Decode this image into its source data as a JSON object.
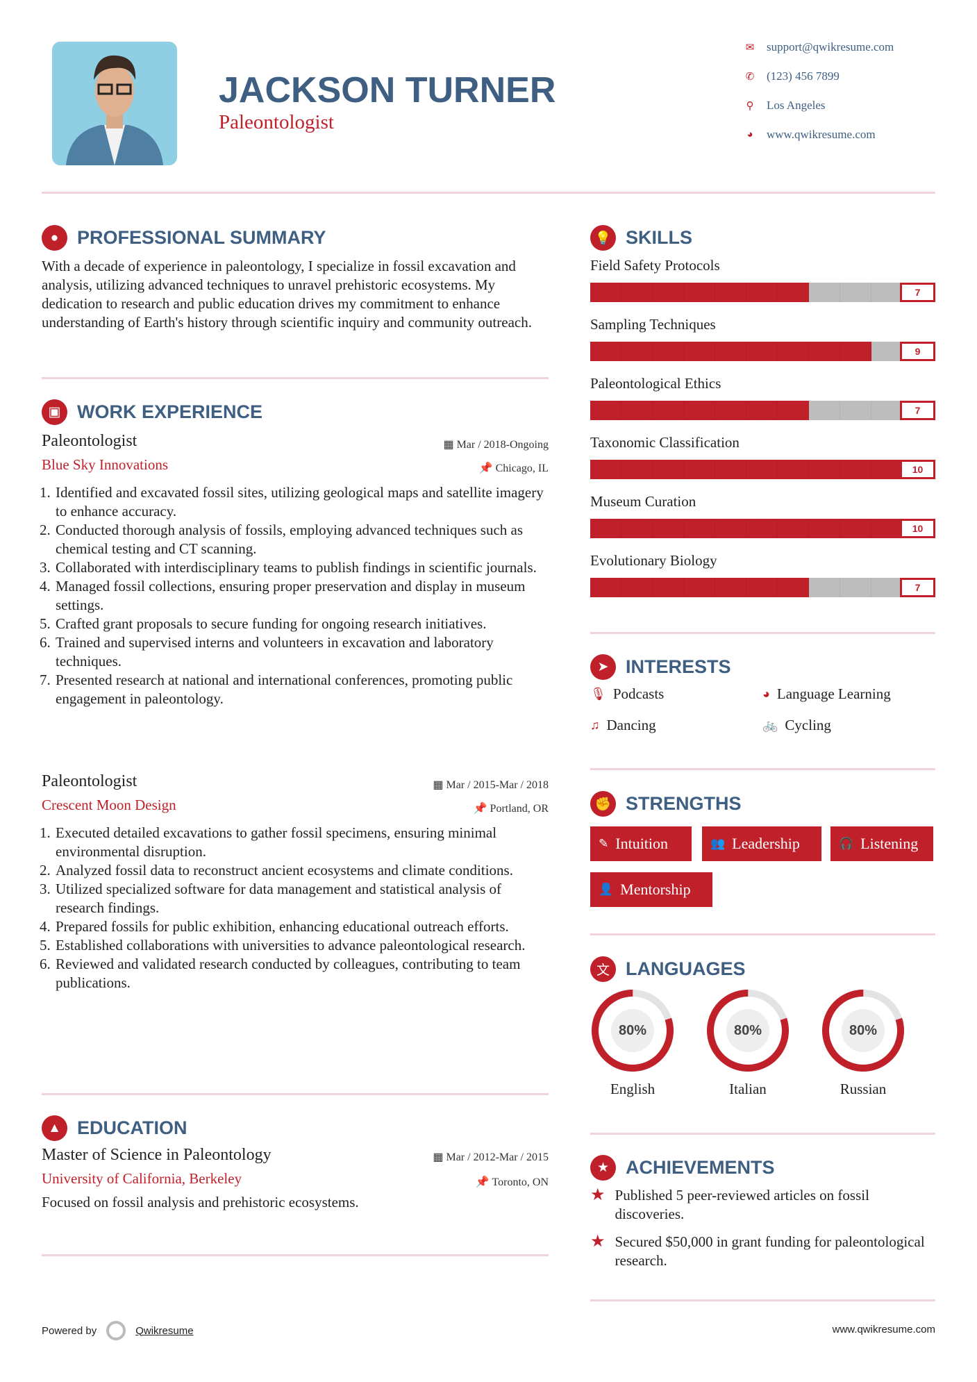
{
  "header": {
    "name": "JACKSON TURNER",
    "title": "Paleontologist",
    "contacts": [
      {
        "icon": "envelope-icon",
        "glyph": "✉",
        "text": "support@qwikresume.com"
      },
      {
        "icon": "phone-icon",
        "glyph": "✆",
        "text": "(123) 456 7899"
      },
      {
        "icon": "map-pin-icon",
        "glyph": "⚲",
        "text": "Los Angeles"
      },
      {
        "icon": "globe-icon",
        "glyph": "◕",
        "text": "www.qwikresume.com"
      }
    ]
  },
  "summary": {
    "heading": "PROFESSIONAL SUMMARY",
    "text": "With a decade of experience in paleontology, I specialize in fossil excavation and analysis, utilizing advanced techniques to unravel prehistoric ecosystems. My dedication to research and public education drives my commitment to enhance understanding of Earth's history through scientific inquiry and community outreach."
  },
  "work": {
    "heading": "WORK EXPERIENCE",
    "jobs": [
      {
        "title": "Paleontologist",
        "date": "Mar / 2018-Ongoing",
        "company": "Blue Sky Innovations",
        "location": "Chicago, IL",
        "points": [
          "Identified and excavated fossil sites, utilizing geological maps and satellite imagery to enhance accuracy.",
          "Conducted thorough analysis of fossils, employing advanced techniques such as chemical testing and CT scanning.",
          "Collaborated with interdisciplinary teams to publish findings in scientific journals.",
          "Managed fossil collections, ensuring proper preservation and display in museum settings.",
          "Crafted grant proposals to secure funding for ongoing research initiatives.",
          "Trained and supervised interns and volunteers in excavation and laboratory techniques.",
          "Presented research at national and international conferences, promoting public engagement in paleontology."
        ]
      },
      {
        "title": "Paleontologist",
        "date": "Mar / 2015-Mar / 2018",
        "company": "Crescent Moon Design",
        "location": "Portland, OR",
        "points": [
          "Executed detailed excavations to gather fossil specimens, ensuring minimal environmental disruption.",
          "Analyzed fossil data to reconstruct ancient ecosystems and climate conditions.",
          "Utilized specialized software for data management and statistical analysis of research findings.",
          "Prepared fossils for public exhibition, enhancing educational outreach efforts.",
          "Established collaborations with universities to advance paleontological research.",
          "Reviewed and validated research conducted by colleagues, contributing to team publications."
        ]
      }
    ]
  },
  "education": {
    "heading": "EDUCATION",
    "degree": "Master of Science in Paleontology",
    "date": "Mar / 2012-Mar / 2015",
    "school": "University of California, Berkeley",
    "location": "Toronto, ON",
    "description": "Focused on fossil analysis and prehistoric ecosystems."
  },
  "skills": {
    "heading": "SKILLS",
    "max": 10,
    "items": [
      {
        "name": "Field Safety Protocols",
        "level": "7"
      },
      {
        "name": "Sampling Techniques",
        "level": "9"
      },
      {
        "name": "Paleontological Ethics",
        "level": "7"
      },
      {
        "name": "Taxonomic Classification",
        "level": "10"
      },
      {
        "name": "Museum Curation",
        "level": "10"
      },
      {
        "name": "Evolutionary Biology",
        "level": "7"
      }
    ]
  },
  "interests": {
    "heading": "INTERESTS",
    "items": [
      {
        "icon": "microphone-icon",
        "glyph": "🎙",
        "label": "Podcasts"
      },
      {
        "icon": "globe-icon",
        "glyph": "◕",
        "label": "Language Learning"
      },
      {
        "icon": "music-note-icon",
        "glyph": "♫",
        "label": "Dancing"
      },
      {
        "icon": "bicycle-icon",
        "glyph": "🚲",
        "label": "Cycling"
      }
    ]
  },
  "strengths": {
    "heading": "STRENGTHS",
    "items": [
      {
        "icon": "magic-wand-icon",
        "glyph": "✎",
        "label": "Intuition"
      },
      {
        "icon": "users-icon",
        "glyph": "👥",
        "label": "Leadership"
      },
      {
        "icon": "headphones-icon",
        "glyph": "🎧",
        "label": "Listening"
      },
      {
        "icon": "user-plus-icon",
        "glyph": "👤",
        "label": "Mentorship"
      }
    ]
  },
  "languages": {
    "heading": "LANGUAGES",
    "items": [
      {
        "name": "English",
        "percent": "80%"
      },
      {
        "name": "Italian",
        "percent": "80%"
      },
      {
        "name": "Russian",
        "percent": "80%"
      }
    ]
  },
  "achievements": {
    "heading": "ACHIEVEMENTS",
    "items": [
      "Published 5 peer-reviewed articles on fossil discoveries.",
      "Secured $50,000 in grant funding for paleontological research."
    ]
  },
  "footer": {
    "powered_by": "Powered by",
    "brand": "Qwikresume",
    "website": "www.qwikresume.com"
  },
  "colors": {
    "accent": "#c0202a",
    "heading": "#3e5f82",
    "bar_empty": "#bdbdbd",
    "divider": "#f2d3da"
  }
}
